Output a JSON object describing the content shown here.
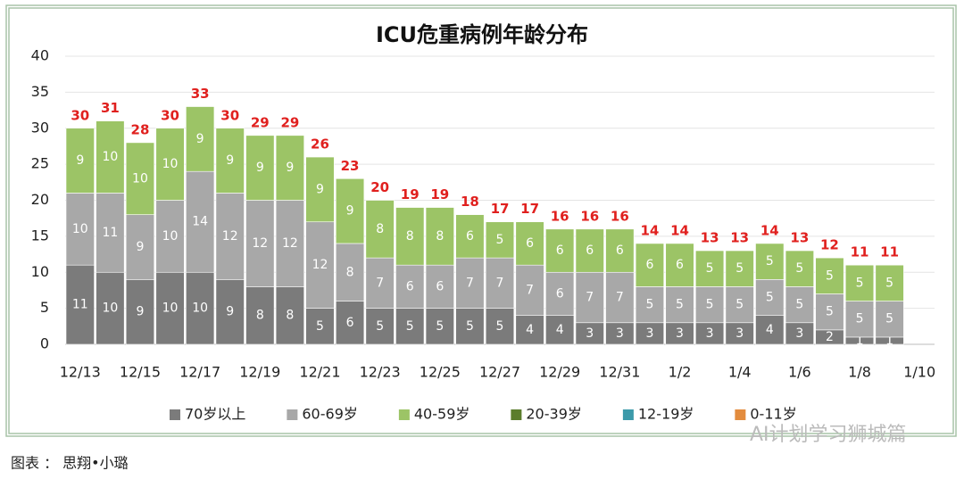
{
  "chart_data": {
    "type": "stacked-bar",
    "title": "ICU危重病例年龄分布",
    "categories": [
      "12/13",
      null,
      "12/15",
      null,
      "12/17",
      null,
      "12/19",
      null,
      "12/21",
      null,
      "12/23",
      null,
      "12/25",
      null,
      "12/27",
      null,
      "12/29",
      null,
      "12/31",
      null,
      "1/2",
      null,
      "1/4",
      null,
      "1/6",
      null,
      "1/8",
      null,
      "1/10"
    ],
    "series": [
      {
        "name": "70岁以上",
        "color": "#7b7b7b",
        "values": [
          11,
          10,
          9,
          10,
          10,
          9,
          8,
          8,
          5,
          6,
          5,
          5,
          5,
          5,
          5,
          4,
          4,
          3,
          3,
          3,
          3,
          3,
          3,
          4,
          3,
          2,
          1,
          1,
          null
        ]
      },
      {
        "name": "60-69岁",
        "color": "#a8a8a8",
        "values": [
          10,
          11,
          9,
          10,
          14,
          12,
          12,
          12,
          12,
          8,
          7,
          6,
          6,
          7,
          7,
          7,
          6,
          7,
          7,
          5,
          5,
          5,
          5,
          5,
          5,
          5,
          5,
          5,
          null
        ]
      },
      {
        "name": "40-59岁",
        "color": "#9cc466",
        "values": [
          9,
          10,
          10,
          10,
          9,
          9,
          9,
          9,
          9,
          9,
          8,
          8,
          8,
          6,
          5,
          6,
          6,
          6,
          6,
          6,
          6,
          5,
          5,
          5,
          5,
          5,
          5,
          5,
          null
        ]
      },
      {
        "name": "20-39岁",
        "color": "#5b7d2c",
        "values": [
          0,
          0,
          0,
          0,
          0,
          0,
          0,
          0,
          0,
          0,
          0,
          0,
          0,
          0,
          0,
          0,
          0,
          0,
          0,
          0,
          0,
          0,
          0,
          0,
          0,
          0,
          0,
          0,
          null
        ]
      },
      {
        "name": "12-19岁",
        "color": "#3c9aaa",
        "values": [
          0,
          0,
          0,
          0,
          0,
          0,
          0,
          0,
          0,
          0,
          0,
          0,
          0,
          0,
          0,
          0,
          0,
          0,
          0,
          0,
          0,
          0,
          0,
          0,
          0,
          0,
          0,
          0,
          null
        ]
      },
      {
        "name": "0-11岁",
        "color": "#e38c3e",
        "values": [
          0,
          0,
          0,
          0,
          0,
          0,
          0,
          0,
          0,
          0,
          0,
          0,
          0,
          0,
          0,
          0,
          0,
          0,
          0,
          0,
          0,
          0,
          0,
          0,
          0,
          0,
          0,
          0,
          null
        ]
      }
    ],
    "totals": [
      30,
      31,
      28,
      30,
      33,
      30,
      29,
      29,
      26,
      23,
      20,
      19,
      19,
      18,
      17,
      17,
      16,
      16,
      16,
      14,
      14,
      13,
      13,
      14,
      13,
      12,
      11,
      11,
      null
    ],
    "totals_color": "#e0201e",
    "ylim": [
      0,
      40
    ],
    "yticks": [
      0,
      5,
      10,
      15,
      20,
      25,
      30,
      35,
      40
    ],
    "grid": true,
    "legend": "bottom"
  },
  "watermark": "AI计划学习狮城篇",
  "caption": "图表 ： 思翔•小璐"
}
